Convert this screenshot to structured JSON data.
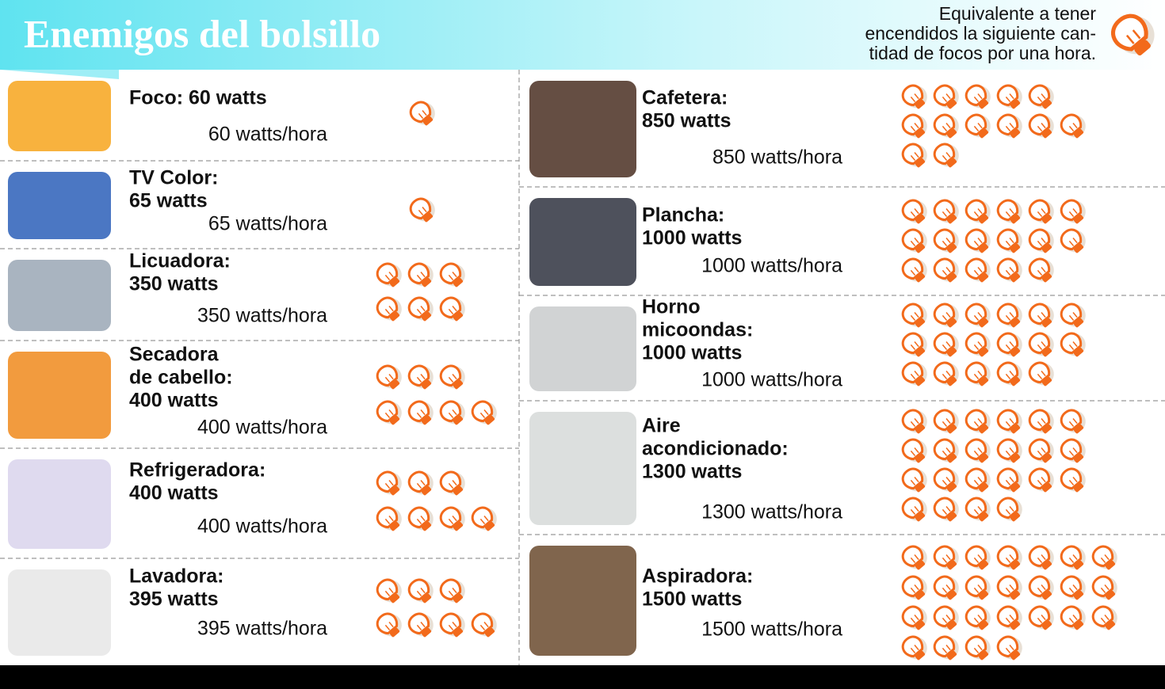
{
  "header": {
    "title": "Enemigos del bolsillo",
    "note": [
      "Equivalente a tener",
      "encendidos la siguiente can-",
      "tidad de focos por una hora."
    ]
  },
  "items": [
    {
      "label": [
        "Foco: 60 watts"
      ],
      "usage": "60 watts/hora",
      "bulbs": 1
    },
    {
      "label": [
        "TV Color:",
        "65 watts"
      ],
      "usage": "65 watts/hora",
      "bulbs": 1
    },
    {
      "label": [
        "Licuadora:",
        "350 watts"
      ],
      "usage": "350 watts/hora",
      "bulbs": 6
    },
    {
      "label": [
        "Secadora",
        "de cabello:",
        "400 watts"
      ],
      "usage": "400 watts/hora",
      "bulbs": 7
    },
    {
      "label": [
        "Refrigeradora:",
        "400 watts"
      ],
      "usage": "400 watts/hora",
      "bulbs": 7
    },
    {
      "label": [
        "Lavadora:",
        "395 watts"
      ],
      "usage": "395 watts/hora",
      "bulbs": 7
    },
    {
      "label": [
        "Cafetera:",
        "850 watts"
      ],
      "usage": "850 watts/hora",
      "bulbs": 13
    },
    {
      "label": [
        "Plancha:",
        "1000 watts"
      ],
      "usage": "1000 watts/hora",
      "bulbs": 17
    },
    {
      "label": [
        "Horno",
        "micoondas:",
        "1000 watts"
      ],
      "usage": "1000 watts/hora",
      "bulbs": 17
    },
    {
      "label": [
        "Aire",
        "acondicionado:",
        "1300 watts"
      ],
      "usage": "1300 watts/hora",
      "bulbs": 22
    },
    {
      "label": [
        "Aspiradora:",
        "1500 watts"
      ],
      "usage": "1500 watts/hora",
      "bulbs": 25
    }
  ]
}
